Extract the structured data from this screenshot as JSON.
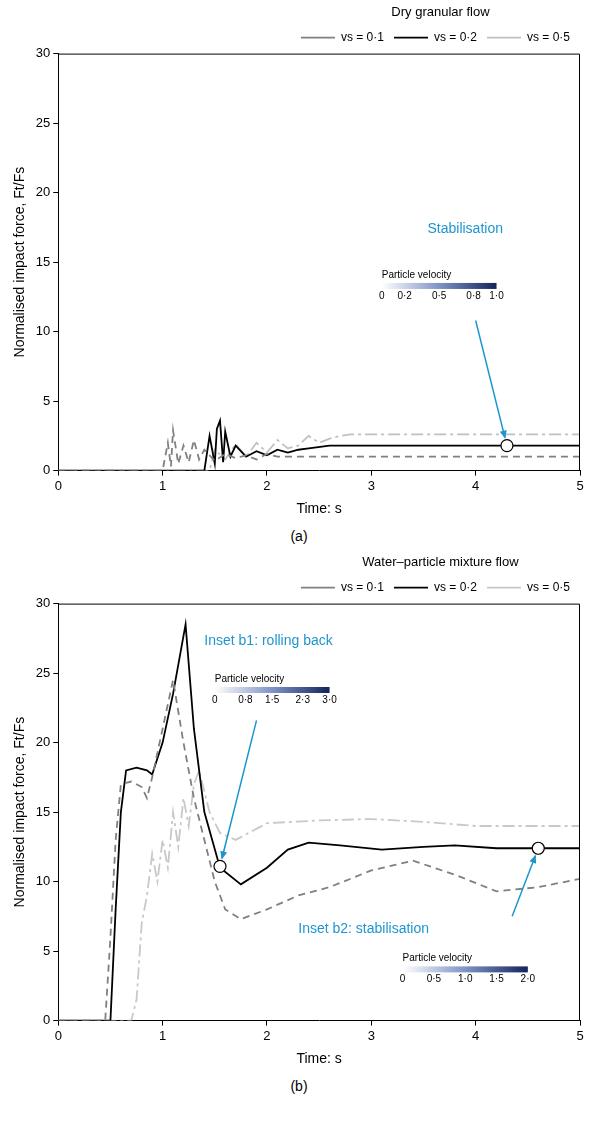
{
  "chart_data": [
    {
      "type": "line",
      "xlabel": "Time: s",
      "ylabel": "Normalised impact force, Ft/Fs",
      "legend_title": "Dry granular flow",
      "caption": "(a)",
      "legend": "top-right",
      "grid": false,
      "xlim": [
        0,
        5
      ],
      "xticks": [
        0,
        1,
        2,
        3,
        4,
        5
      ],
      "ylim": [
        0,
        30
      ],
      "yticks": [
        0,
        5,
        10,
        15,
        20,
        25,
        30
      ],
      "series": [
        {
          "name": "vs = 0·1",
          "color": "#808080",
          "line_style": "dashed",
          "x": [
            0,
            1.0,
            1.05,
            1.08,
            1.1,
            1.15,
            1.2,
            1.25,
            1.3,
            1.35,
            1.4,
            1.5,
            1.6,
            1.7,
            1.8,
            1.9,
            2.0,
            2.1,
            2.2,
            2.3,
            2.5,
            3,
            4,
            5
          ],
          "values": [
            0,
            0,
            2.0,
            0.3,
            2.9,
            0.5,
            1.8,
            0.6,
            2.2,
            0.8,
            1.5,
            0.7,
            1.2,
            0.9,
            1.1,
            0.8,
            1.2,
            1.0,
            1.0,
            1.0,
            1.0,
            1.0,
            1.0,
            1.0
          ]
        },
        {
          "name": "vs = 0·2",
          "color": "#000000",
          "line_style": "solid",
          "x": [
            0,
            1.4,
            1.45,
            1.5,
            1.52,
            1.55,
            1.58,
            1.6,
            1.65,
            1.7,
            1.8,
            1.9,
            2.0,
            2.1,
            2.2,
            2.3,
            2.4,
            2.6,
            2.8,
            3,
            4,
            5
          ],
          "values": [
            0,
            0,
            2.5,
            0.5,
            3.0,
            3.6,
            0.6,
            2.8,
            1.0,
            1.8,
            1.0,
            1.4,
            1.1,
            1.5,
            1.3,
            1.5,
            1.6,
            1.8,
            1.8,
            1.8,
            1.8,
            1.8
          ]
        },
        {
          "name": "vs = 0·5",
          "color": "#c0c0c0",
          "line_style": "dashdot",
          "x": [
            0,
            1.45,
            1.5,
            1.6,
            1.7,
            1.8,
            1.9,
            2.0,
            2.1,
            2.2,
            2.3,
            2.4,
            2.5,
            2.6,
            2.7,
            2.8,
            3,
            4,
            5
          ],
          "values": [
            0,
            0,
            1.5,
            0.8,
            1.9,
            1.0,
            2.0,
            1.3,
            2.2,
            1.6,
            1.8,
            2.5,
            2.0,
            2.3,
            2.5,
            2.6,
            2.6,
            2.6,
            2.6
          ]
        }
      ],
      "annotations": [
        {
          "text": "Stabilisation",
          "x": 4.3,
          "y": 1.8,
          "colorbar": {
            "title": "Particle velocity",
            "ticks": [
              0,
              {
                "value": 0.2,
                "label": "0·2"
              },
              {
                "value": 0.5,
                "label": "0·5"
              },
              {
                "value": 0.8,
                "label": "0·8"
              },
              {
                "value": 1.0,
                "label": "1·0"
              }
            ]
          }
        }
      ]
    },
    {
      "type": "line",
      "xlabel": "Time: s",
      "ylabel": "Normalised impact force, Ft/Fs",
      "legend_title": "Water–particle mixture flow",
      "caption": "(b)",
      "legend": "top-right",
      "grid": false,
      "xlim": [
        0,
        5
      ],
      "xticks": [
        0,
        1,
        2,
        3,
        4,
        5
      ],
      "ylim": [
        0,
        30
      ],
      "yticks": [
        0,
        5,
        10,
        15,
        20,
        25,
        30
      ],
      "series": [
        {
          "name": "vs = 0·1",
          "color": "#808080",
          "line_style": "dashed",
          "x": [
            0,
            0.45,
            0.5,
            0.55,
            0.6,
            0.7,
            0.8,
            0.85,
            0.9,
            1.0,
            1.1,
            1.2,
            1.3,
            1.4,
            1.5,
            1.6,
            1.75,
            2.0,
            2.3,
            2.6,
            3.0,
            3.4,
            3.8,
            4.2,
            4.6,
            5.0
          ],
          "values": [
            0,
            0,
            6.0,
            13.0,
            17.0,
            17.2,
            16.8,
            16.0,
            17.5,
            21.0,
            24.5,
            20.0,
            16.0,
            13.0,
            10.0,
            8.0,
            7.3,
            8.0,
            9.0,
            9.6,
            10.8,
            11.5,
            10.5,
            9.3,
            9.6,
            10.2
          ]
        },
        {
          "name": "vs = 0·2",
          "color": "#000000",
          "line_style": "solid",
          "x": [
            0,
            0.5,
            0.55,
            0.6,
            0.65,
            0.75,
            0.85,
            0.9,
            1.0,
            1.1,
            1.22,
            1.3,
            1.4,
            1.55,
            1.75,
            2.0,
            2.2,
            2.4,
            2.7,
            3.1,
            3.5,
            3.8,
            4.2,
            4.6,
            5.0
          ],
          "values": [
            0,
            0,
            8.0,
            15.0,
            18.0,
            18.2,
            18.0,
            17.7,
            20.0,
            23.5,
            28.5,
            21.0,
            15.0,
            11.0,
            9.8,
            11.0,
            12.3,
            12.8,
            12.6,
            12.3,
            12.5,
            12.6,
            12.4,
            12.4,
            12.4
          ]
        },
        {
          "name": "vs = 0·5",
          "color": "#c8c8c8",
          "line_style": "dashdot",
          "x": [
            0,
            0.7,
            0.75,
            0.8,
            0.85,
            0.9,
            0.95,
            1.0,
            1.05,
            1.1,
            1.15,
            1.2,
            1.25,
            1.3,
            1.35,
            1.45,
            1.55,
            1.7,
            2.0,
            2.5,
            3.0,
            3.5,
            4.0,
            4.5,
            5.0
          ],
          "values": [
            0,
            0,
            1.5,
            7.0,
            9.0,
            12.0,
            10.0,
            13.0,
            11.0,
            15.0,
            12.5,
            16.0,
            14.0,
            17.0,
            18.0,
            15.0,
            13.5,
            13.0,
            14.2,
            14.4,
            14.5,
            14.3,
            14.0,
            14.0,
            14.0
          ]
        }
      ],
      "annotations": [
        {
          "text": "Inset b1: rolling back",
          "x": 1.55,
          "y": 11.1,
          "colorbar": {
            "title": "Particle velocity",
            "ticks": [
              0,
              {
                "value": 0.8,
                "label": "0·8"
              },
              {
                "value": 1.5,
                "label": "1·5"
              },
              {
                "value": 2.3,
                "label": "2·3"
              },
              {
                "value": 3.0,
                "label": "3·0"
              }
            ]
          }
        },
        {
          "text": "Inset b2: stabilisation",
          "x": 4.6,
          "y": 12.4,
          "colorbar": {
            "title": "Particle velocity",
            "ticks": [
              0,
              {
                "value": 0.5,
                "label": "0·5"
              },
              {
                "value": 1.0,
                "label": "1·0"
              },
              {
                "value": 1.5,
                "label": "1·5"
              },
              {
                "value": 2.0,
                "label": "2·0"
              }
            ]
          }
        }
      ]
    }
  ]
}
